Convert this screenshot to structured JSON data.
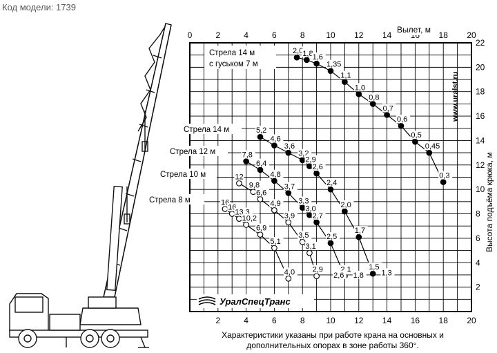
{
  "header": {
    "model_label": "Код модели: 1739"
  },
  "footnote": {
    "line1": "Характеристики указаны при работе крана на основных и",
    "line2": "дополнительных опорах в зоне работы 360°."
  },
  "watermark": "www.uralst.ru",
  "logo_text": "УралСпецТранс",
  "chart_data": {
    "type": "scatter",
    "x_axis": {
      "label": "Вылет, м",
      "ticks": [
        0,
        2,
        4,
        6,
        8,
        10,
        12,
        14,
        16,
        18,
        20
      ],
      "range": [
        0,
        20
      ]
    },
    "x_axis_bottom_ticks": [
      2,
      4,
      6,
      8,
      10,
      12,
      14,
      16,
      18,
      20
    ],
    "y_axis": {
      "label": "Высота подъёма крюка, м",
      "ticks": [
        2,
        4,
        6,
        8,
        10,
        12,
        14,
        16,
        18,
        20,
        22
      ],
      "range": [
        0,
        22
      ]
    },
    "grid": true,
    "series": [
      {
        "name": "Стрела 14 м с гуськом 7 м",
        "name_lines": [
          "Стрела 14 м",
          "с гуськом 7 м"
        ],
        "marker": "filled",
        "points": [
          {
            "x": 7.6,
            "y": 20.8,
            "label": "2,0"
          },
          {
            "x": 8.3,
            "y": 20.6,
            "label": "1,8"
          },
          {
            "x": 9.0,
            "y": 20.3,
            "label": "1,6"
          },
          {
            "x": 10.0,
            "y": 19.7,
            "label": "1,35"
          },
          {
            "x": 11.0,
            "y": 18.8,
            "label": "1,1"
          },
          {
            "x": 12.0,
            "y": 17.8,
            "label": "1,0"
          },
          {
            "x": 13.0,
            "y": 17.0,
            "label": "0,8"
          },
          {
            "x": 14.0,
            "y": 16.1,
            "label": "0,7"
          },
          {
            "x": 15.0,
            "y": 15.2,
            "label": "0,6"
          },
          {
            "x": 16.0,
            "y": 13.9,
            "label": "0,5"
          },
          {
            "x": 17.0,
            "y": 13.0,
            "label": "0,45"
          },
          {
            "x": 18.0,
            "y": 10.6,
            "label": "0,3"
          }
        ]
      },
      {
        "name": "Стрела 14 м",
        "marker": "filled",
        "points": [
          {
            "x": 5.0,
            "y": 14.3,
            "label": "5,2"
          },
          {
            "x": 6.0,
            "y": 13.6,
            "label": "4,6"
          },
          {
            "x": 7.0,
            "y": 13.0,
            "label": "3,6"
          },
          {
            "x": 8.0,
            "y": 12.4,
            "label": "3,2"
          },
          {
            "x": 8.5,
            "y": 11.9,
            "label": "2,9"
          },
          {
            "x": 9.0,
            "y": 11.3,
            "label": "2,6"
          },
          {
            "x": 10.0,
            "y": 10.0,
            "label": "2,4"
          },
          {
            "x": 11.0,
            "y": 8.2,
            "label": "2,0"
          },
          {
            "x": 12.0,
            "y": 6.1,
            "label": "1,7"
          },
          {
            "x": 13.0,
            "y": 3.1,
            "label": "1,5"
          }
        ]
      },
      {
        "name": "Стрела 12 м",
        "marker": "filled",
        "points": [
          {
            "x": 4.0,
            "y": 12.3,
            "label": "7,8"
          },
          {
            "x": 5.0,
            "y": 11.6,
            "label": "6,4"
          },
          {
            "x": 6.0,
            "y": 10.7,
            "label": "4,8"
          },
          {
            "x": 7.0,
            "y": 9.7,
            "label": "3,7"
          },
          {
            "x": 8.0,
            "y": 8.5,
            "label": "3,3"
          },
          {
            "x": 8.5,
            "y": 7.9,
            "label": "3,0"
          },
          {
            "x": 9.0,
            "y": 7.3,
            "label": "2,7"
          },
          {
            "x": 10.0,
            "y": 5.6,
            "label": "2,5"
          },
          {
            "x": 11.0,
            "y": 2.9,
            "label": "2,1"
          }
        ]
      },
      {
        "name": "Стрела 10 м",
        "marker": "hollow",
        "points": [
          {
            "x": 3.5,
            "y": 10.5,
            "label": "12"
          },
          {
            "x": 4.5,
            "y": 9.8,
            "label": "9,8"
          },
          {
            "x": 5.0,
            "y": 9.2,
            "label": "6,6"
          },
          {
            "x": 6.0,
            "y": 8.3,
            "label": "4,9"
          },
          {
            "x": 7.0,
            "y": 7.3,
            "label": "3,9"
          },
          {
            "x": 8.0,
            "y": 5.7,
            "label": "3,5"
          },
          {
            "x": 8.5,
            "y": 4.8,
            "label": "3,1"
          },
          {
            "x": 9.0,
            "y": 2.9,
            "label": "2,9"
          }
        ]
      },
      {
        "name": "Стрела 8 м",
        "marker": "hollow",
        "points": [
          {
            "x": 2.5,
            "y": 8.4,
            "label": "16"
          },
          {
            "x": 3.0,
            "y": 8.0,
            "label": "16"
          },
          {
            "x": 3.5,
            "y": 7.6,
            "label": "13,3"
          },
          {
            "x": 4.0,
            "y": 7.1,
            "label": "10,2"
          },
          {
            "x": 5.0,
            "y": 6.3,
            "label": "6,9"
          },
          {
            "x": 6.0,
            "y": 5.2,
            "label": "5,1"
          },
          {
            "x": 7.0,
            "y": 2.7,
            "label": "4,0"
          }
        ]
      }
    ],
    "extra_labels": [
      {
        "text": "2,6",
        "x": 10.2,
        "y": 3.0
      },
      {
        "text": "1,8",
        "x": 11.6,
        "y": 3.0
      },
      {
        "text": "1,3",
        "x": 13.6,
        "y": 3.2
      }
    ]
  }
}
